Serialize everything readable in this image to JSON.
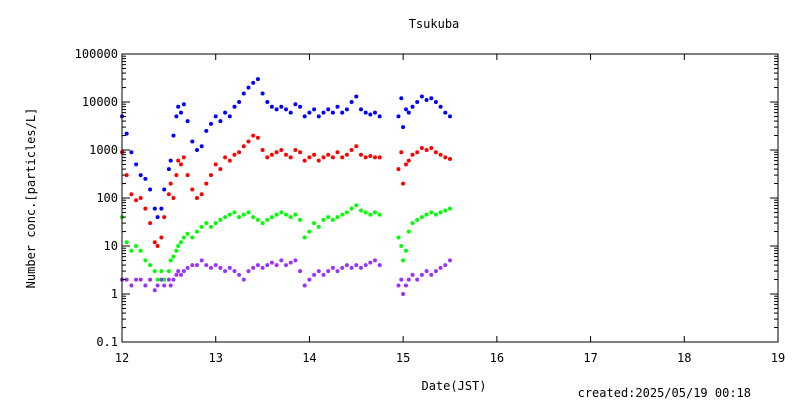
{
  "chart_data": {
    "type": "scatter",
    "title": "Tsukuba",
    "xlabel": "Date(JST)",
    "ylabel": "Number conc.[particles/L]",
    "footer": "created:2025/05/19 00:18",
    "y_scale": "log",
    "xlim": [
      12,
      19
    ],
    "ylim": [
      0.1,
      100000
    ],
    "x_ticks": [
      "12",
      "13",
      "14",
      "15",
      "16",
      "17",
      "18",
      "19"
    ],
    "y_ticks": [
      "0.1",
      "1",
      "10",
      "100",
      "1000",
      "10000",
      "100000"
    ],
    "grid": false,
    "legend": "none",
    "series": [
      {
        "color": "#0000ff",
        "points": [
          [
            12.0,
            5000
          ],
          [
            12.05,
            2200
          ],
          [
            12.1,
            900
          ],
          [
            12.15,
            500
          ],
          [
            12.2,
            300
          ],
          [
            12.25,
            250
          ],
          [
            12.3,
            150
          ],
          [
            12.35,
            60
          ],
          [
            12.38,
            40
          ],
          [
            12.42,
            60
          ],
          [
            12.45,
            150
          ],
          [
            12.5,
            400
          ],
          [
            12.52,
            600
          ],
          [
            12.55,
            2000
          ],
          [
            12.58,
            5000
          ],
          [
            12.6,
            8000
          ],
          [
            12.63,
            6000
          ],
          [
            12.66,
            9000
          ],
          [
            12.7,
            4000
          ],
          [
            12.75,
            1500
          ],
          [
            12.8,
            1000
          ],
          [
            12.85,
            1200
          ],
          [
            12.9,
            2500
          ],
          [
            12.95,
            3500
          ],
          [
            13.0,
            5000
          ],
          [
            13.05,
            4000
          ],
          [
            13.1,
            6000
          ],
          [
            13.15,
            5000
          ],
          [
            13.2,
            8000
          ],
          [
            13.25,
            10000
          ],
          [
            13.3,
            15000
          ],
          [
            13.35,
            20000
          ],
          [
            13.4,
            25000
          ],
          [
            13.45,
            30000
          ],
          [
            13.5,
            15000
          ],
          [
            13.55,
            10000
          ],
          [
            13.6,
            8000
          ],
          [
            13.65,
            7000
          ],
          [
            13.7,
            8000
          ],
          [
            13.75,
            7000
          ],
          [
            13.8,
            6000
          ],
          [
            13.85,
            9000
          ],
          [
            13.9,
            8000
          ],
          [
            13.95,
            5000
          ],
          [
            14.0,
            6000
          ],
          [
            14.05,
            7000
          ],
          [
            14.1,
            5000
          ],
          [
            14.15,
            6000
          ],
          [
            14.2,
            7000
          ],
          [
            14.25,
            6000
          ],
          [
            14.3,
            8000
          ],
          [
            14.35,
            6000
          ],
          [
            14.4,
            7000
          ],
          [
            14.45,
            10000
          ],
          [
            14.5,
            13000
          ],
          [
            14.55,
            7000
          ],
          [
            14.6,
            6000
          ],
          [
            14.65,
            5500
          ],
          [
            14.7,
            6000
          ],
          [
            14.75,
            5000
          ],
          [
            14.95,
            5000
          ],
          [
            14.98,
            12000
          ],
          [
            15.0,
            3000
          ],
          [
            15.03,
            7000
          ],
          [
            15.06,
            6000
          ],
          [
            15.1,
            8000
          ],
          [
            15.15,
            10000
          ],
          [
            15.2,
            13000
          ],
          [
            15.25,
            11000
          ],
          [
            15.3,
            12000
          ],
          [
            15.35,
            10000
          ],
          [
            15.4,
            8000
          ],
          [
            15.45,
            6000
          ],
          [
            15.5,
            5000
          ]
        ]
      },
      {
        "color": "#ff0000",
        "points": [
          [
            12.0,
            900
          ],
          [
            12.05,
            300
          ],
          [
            12.1,
            120
          ],
          [
            12.15,
            90
          ],
          [
            12.2,
            100
          ],
          [
            12.25,
            60
          ],
          [
            12.3,
            30
          ],
          [
            12.35,
            12
          ],
          [
            12.38,
            10
          ],
          [
            12.42,
            15
          ],
          [
            12.45,
            40
          ],
          [
            12.5,
            120
          ],
          [
            12.52,
            200
          ],
          [
            12.55,
            100
          ],
          [
            12.58,
            300
          ],
          [
            12.6,
            600
          ],
          [
            12.63,
            500
          ],
          [
            12.66,
            700
          ],
          [
            12.7,
            300
          ],
          [
            12.75,
            150
          ],
          [
            12.8,
            100
          ],
          [
            12.85,
            120
          ],
          [
            12.9,
            200
          ],
          [
            12.95,
            300
          ],
          [
            13.0,
            500
          ],
          [
            13.05,
            400
          ],
          [
            13.1,
            700
          ],
          [
            13.15,
            600
          ],
          [
            13.2,
            800
          ],
          [
            13.25,
            900
          ],
          [
            13.3,
            1200
          ],
          [
            13.35,
            1500
          ],
          [
            13.4,
            2000
          ],
          [
            13.45,
            1800
          ],
          [
            13.5,
            1000
          ],
          [
            13.55,
            700
          ],
          [
            13.6,
            800
          ],
          [
            13.65,
            900
          ],
          [
            13.7,
            1000
          ],
          [
            13.75,
            800
          ],
          [
            13.8,
            700
          ],
          [
            13.85,
            1000
          ],
          [
            13.9,
            900
          ],
          [
            13.95,
            600
          ],
          [
            14.0,
            700
          ],
          [
            14.05,
            800
          ],
          [
            14.1,
            600
          ],
          [
            14.15,
            700
          ],
          [
            14.2,
            800
          ],
          [
            14.25,
            700
          ],
          [
            14.3,
            900
          ],
          [
            14.35,
            700
          ],
          [
            14.4,
            800
          ],
          [
            14.45,
            1000
          ],
          [
            14.5,
            1200
          ],
          [
            14.55,
            800
          ],
          [
            14.6,
            700
          ],
          [
            14.65,
            750
          ],
          [
            14.7,
            700
          ],
          [
            14.75,
            700
          ],
          [
            14.95,
            400
          ],
          [
            14.98,
            900
          ],
          [
            15.0,
            200
          ],
          [
            15.03,
            500
          ],
          [
            15.06,
            600
          ],
          [
            15.1,
            800
          ],
          [
            15.15,
            900
          ],
          [
            15.2,
            1100
          ],
          [
            15.25,
            1000
          ],
          [
            15.3,
            1100
          ],
          [
            15.35,
            900
          ],
          [
            15.4,
            800
          ],
          [
            15.45,
            700
          ],
          [
            15.5,
            650
          ]
        ]
      },
      {
        "color": "#00ff00",
        "points": [
          [
            12.0,
            40
          ],
          [
            12.05,
            12
          ],
          [
            12.1,
            8
          ],
          [
            12.15,
            10
          ],
          [
            12.2,
            8
          ],
          [
            12.25,
            5
          ],
          [
            12.3,
            4
          ],
          [
            12.35,
            3
          ],
          [
            12.38,
            2
          ],
          [
            12.42,
            3
          ],
          [
            12.45,
            2
          ],
          [
            12.5,
            3
          ],
          [
            12.52,
            5
          ],
          [
            12.55,
            6
          ],
          [
            12.58,
            8
          ],
          [
            12.6,
            10
          ],
          [
            12.63,
            12
          ],
          [
            12.66,
            15
          ],
          [
            12.7,
            18
          ],
          [
            12.75,
            15
          ],
          [
            12.8,
            20
          ],
          [
            12.85,
            25
          ],
          [
            12.9,
            30
          ],
          [
            12.95,
            25
          ],
          [
            13.0,
            30
          ],
          [
            13.05,
            35
          ],
          [
            13.1,
            40
          ],
          [
            13.15,
            45
          ],
          [
            13.2,
            50
          ],
          [
            13.25,
            40
          ],
          [
            13.3,
            45
          ],
          [
            13.35,
            50
          ],
          [
            13.4,
            40
          ],
          [
            13.45,
            35
          ],
          [
            13.5,
            30
          ],
          [
            13.55,
            35
          ],
          [
            13.6,
            40
          ],
          [
            13.65,
            45
          ],
          [
            13.7,
            50
          ],
          [
            13.75,
            45
          ],
          [
            13.8,
            40
          ],
          [
            13.85,
            45
          ],
          [
            13.9,
            35
          ],
          [
            13.95,
            15
          ],
          [
            14.0,
            20
          ],
          [
            14.05,
            30
          ],
          [
            14.1,
            25
          ],
          [
            14.15,
            35
          ],
          [
            14.2,
            40
          ],
          [
            14.25,
            35
          ],
          [
            14.3,
            40
          ],
          [
            14.35,
            45
          ],
          [
            14.4,
            50
          ],
          [
            14.45,
            60
          ],
          [
            14.5,
            70
          ],
          [
            14.55,
            55
          ],
          [
            14.6,
            50
          ],
          [
            14.65,
            45
          ],
          [
            14.7,
            50
          ],
          [
            14.75,
            45
          ],
          [
            14.95,
            15
          ],
          [
            14.98,
            10
          ],
          [
            15.0,
            5
          ],
          [
            15.03,
            8
          ],
          [
            15.06,
            20
          ],
          [
            15.1,
            30
          ],
          [
            15.15,
            35
          ],
          [
            15.2,
            40
          ],
          [
            15.25,
            45
          ],
          [
            15.3,
            50
          ],
          [
            15.35,
            45
          ],
          [
            15.4,
            50
          ],
          [
            15.45,
            55
          ],
          [
            15.5,
            60
          ]
        ]
      },
      {
        "color": "#9933ff",
        "points": [
          [
            12.0,
            2
          ],
          [
            12.05,
            2
          ],
          [
            12.1,
            1.5
          ],
          [
            12.15,
            2
          ],
          [
            12.2,
            2
          ],
          [
            12.25,
            1.5
          ],
          [
            12.3,
            2
          ],
          [
            12.35,
            1.2
          ],
          [
            12.38,
            1.5
          ],
          [
            12.42,
            2
          ],
          [
            12.45,
            1.5
          ],
          [
            12.5,
            2
          ],
          [
            12.52,
            1.5
          ],
          [
            12.55,
            2
          ],
          [
            12.58,
            2.5
          ],
          [
            12.6,
            3
          ],
          [
            12.63,
            2.5
          ],
          [
            12.66,
            3
          ],
          [
            12.7,
            3.5
          ],
          [
            12.75,
            4
          ],
          [
            12.8,
            4
          ],
          [
            12.85,
            5
          ],
          [
            12.9,
            4
          ],
          [
            12.95,
            3.5
          ],
          [
            13.0,
            4
          ],
          [
            13.05,
            3.5
          ],
          [
            13.1,
            3
          ],
          [
            13.15,
            3.5
          ],
          [
            13.2,
            3
          ],
          [
            13.25,
            2.5
          ],
          [
            13.3,
            2
          ],
          [
            13.35,
            3
          ],
          [
            13.4,
            3.5
          ],
          [
            13.45,
            4
          ],
          [
            13.5,
            3.5
          ],
          [
            13.55,
            4
          ],
          [
            13.6,
            4.5
          ],
          [
            13.65,
            4
          ],
          [
            13.7,
            5
          ],
          [
            13.75,
            4
          ],
          [
            13.8,
            4.5
          ],
          [
            13.85,
            5
          ],
          [
            13.9,
            3
          ],
          [
            13.95,
            1.5
          ],
          [
            14.0,
            2
          ],
          [
            14.05,
            2.5
          ],
          [
            14.1,
            3
          ],
          [
            14.15,
            2.5
          ],
          [
            14.2,
            3
          ],
          [
            14.25,
            3.5
          ],
          [
            14.3,
            3
          ],
          [
            14.35,
            3.5
          ],
          [
            14.4,
            4
          ],
          [
            14.45,
            3.5
          ],
          [
            14.5,
            4
          ],
          [
            14.55,
            3.5
          ],
          [
            14.6,
            4
          ],
          [
            14.65,
            4.5
          ],
          [
            14.7,
            5
          ],
          [
            14.75,
            4
          ],
          [
            14.95,
            1.5
          ],
          [
            14.98,
            2
          ],
          [
            15.0,
            1
          ],
          [
            15.03,
            1.5
          ],
          [
            15.06,
            2
          ],
          [
            15.1,
            2.5
          ],
          [
            15.15,
            2
          ],
          [
            15.2,
            2.5
          ],
          [
            15.25,
            3
          ],
          [
            15.3,
            2.5
          ],
          [
            15.35,
            3
          ],
          [
            15.4,
            3.5
          ],
          [
            15.45,
            4
          ],
          [
            15.5,
            5
          ]
        ]
      }
    ]
  }
}
